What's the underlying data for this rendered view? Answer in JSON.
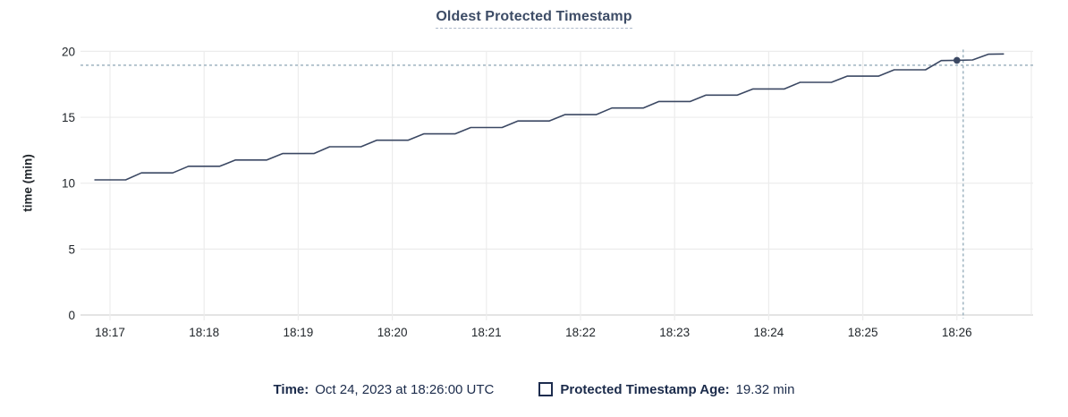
{
  "title": "Oldest Protected Timestamp",
  "colors": {
    "background": "#ffffff",
    "title": "#3d4c66",
    "title_underline": "#aebacb",
    "tick_text": "#1f2429",
    "legend_text": "#1b2b4b",
    "line": "#3b4863",
    "dot": "#3b4863",
    "gridline": "#ececec",
    "axis_line": "#dcdcdc",
    "crosshair": "#9fb4c1",
    "checkbox_border": "#1d2c4e"
  },
  "chart_data": {
    "type": "line",
    "title": "Oldest Protected Timestamp",
    "xlabel": "",
    "ylabel": "time (min)",
    "ylim": [
      0,
      20
    ],
    "y_ticks": [
      0,
      5,
      10,
      15,
      20
    ],
    "x_tick_labels": [
      "18:17",
      "18:18",
      "18:19",
      "18:20",
      "18:21",
      "18:22",
      "18:23",
      "18:24",
      "18:25",
      "18:26"
    ],
    "x_tick_seconds": [
      0,
      60,
      120,
      180,
      240,
      300,
      360,
      420,
      480,
      540
    ],
    "grid": "on",
    "legend_position": "bottom",
    "line_style": "stepped-staircase",
    "series": [
      {
        "name": "Protected Timestamp Age",
        "unit": "min",
        "points": [
          [
            -10,
            10.25
          ],
          [
            0,
            10.25
          ],
          [
            10,
            10.25
          ],
          [
            20,
            10.78
          ],
          [
            30,
            10.78
          ],
          [
            40,
            10.78
          ],
          [
            50,
            11.28
          ],
          [
            60,
            11.28
          ],
          [
            70,
            11.28
          ],
          [
            80,
            11.76
          ],
          [
            90,
            11.76
          ],
          [
            100,
            11.76
          ],
          [
            110,
            12.25
          ],
          [
            120,
            12.25
          ],
          [
            130,
            12.25
          ],
          [
            140,
            12.76
          ],
          [
            150,
            12.76
          ],
          [
            160,
            12.76
          ],
          [
            170,
            13.26
          ],
          [
            180,
            13.26
          ],
          [
            190,
            13.26
          ],
          [
            200,
            13.74
          ],
          [
            210,
            13.74
          ],
          [
            220,
            13.74
          ],
          [
            230,
            14.22
          ],
          [
            240,
            14.22
          ],
          [
            250,
            14.22
          ],
          [
            260,
            14.72
          ],
          [
            270,
            14.72
          ],
          [
            280,
            14.72
          ],
          [
            290,
            15.2
          ],
          [
            300,
            15.2
          ],
          [
            310,
            15.2
          ],
          [
            320,
            15.7
          ],
          [
            330,
            15.7
          ],
          [
            340,
            15.7
          ],
          [
            350,
            16.2
          ],
          [
            360,
            16.2
          ],
          [
            370,
            16.2
          ],
          [
            380,
            16.68
          ],
          [
            390,
            16.68
          ],
          [
            400,
            16.68
          ],
          [
            410,
            17.15
          ],
          [
            420,
            17.15
          ],
          [
            430,
            17.15
          ],
          [
            440,
            17.65
          ],
          [
            450,
            17.65
          ],
          [
            460,
            17.65
          ],
          [
            470,
            18.12
          ],
          [
            480,
            18.12
          ],
          [
            490,
            18.12
          ],
          [
            500,
            18.6
          ],
          [
            510,
            18.6
          ],
          [
            520,
            18.6
          ],
          [
            530,
            19.3
          ],
          [
            540,
            19.32
          ],
          [
            550,
            19.35
          ],
          [
            560,
            19.78
          ],
          [
            570,
            19.8
          ]
        ]
      }
    ],
    "highlight_point": {
      "time": "18:26:00",
      "seconds": 540,
      "value": 19.32
    },
    "crosshair": {
      "seconds": 544,
      "value": 18.95
    }
  },
  "tooltip": {
    "time_label": "Time:",
    "time_value": "Oct 24, 2023 at 18:26:00 UTC",
    "series_label": "Protected Timestamp Age:",
    "series_value": "19.32 min"
  }
}
